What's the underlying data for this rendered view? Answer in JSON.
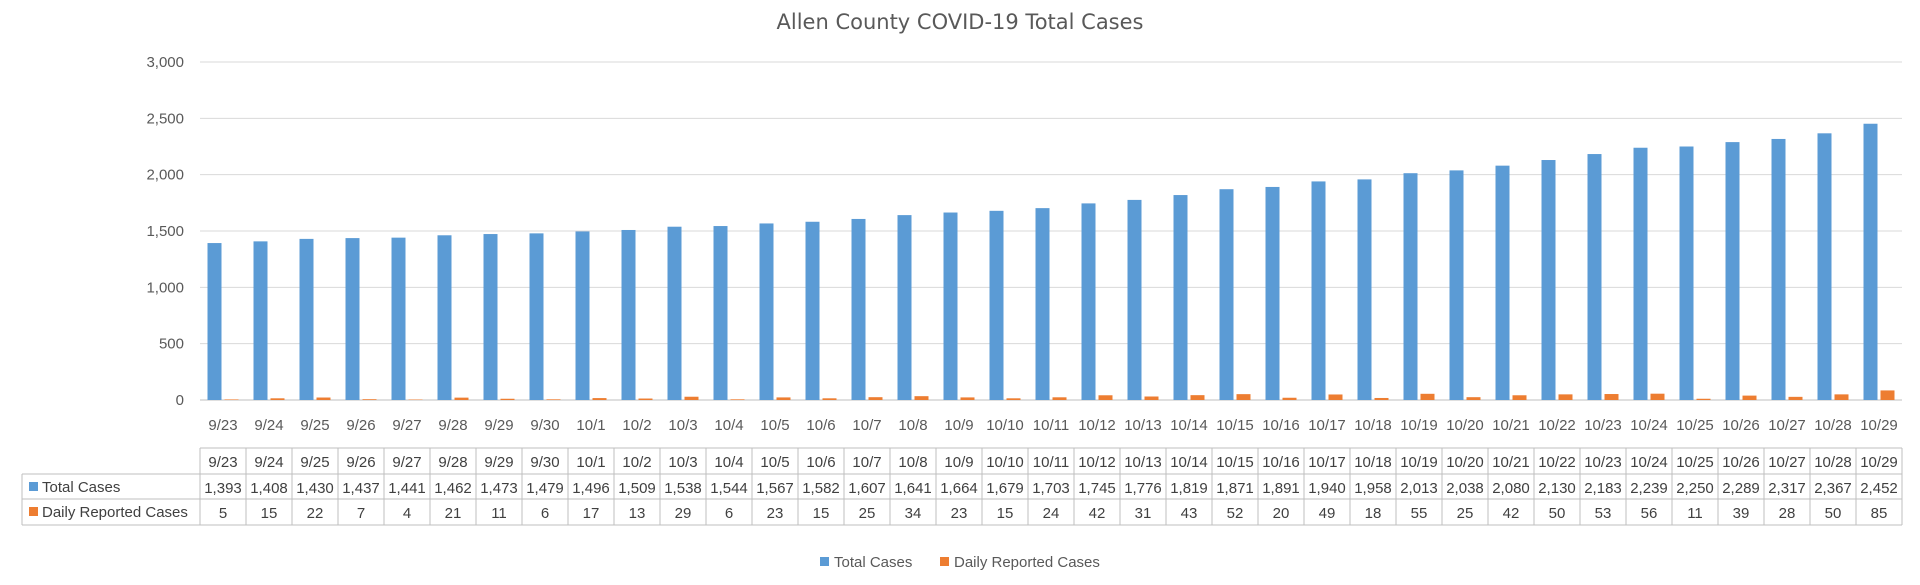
{
  "chart_data": {
    "type": "bar",
    "title": "Allen County COVID-19 Total Cases",
    "categories": [
      "9/23",
      "9/24",
      "9/25",
      "9/26",
      "9/27",
      "9/28",
      "9/29",
      "9/30",
      "10/1",
      "10/2",
      "10/3",
      "10/4",
      "10/5",
      "10/6",
      "10/7",
      "10/8",
      "10/9",
      "10/10",
      "10/11",
      "10/12",
      "10/13",
      "10/14",
      "10/15",
      "10/16",
      "10/17",
      "10/18",
      "10/19",
      "10/20",
      "10/21",
      "10/22",
      "10/23",
      "10/24",
      "10/25",
      "10/26",
      "10/27",
      "10/28",
      "10/29"
    ],
    "series": [
      {
        "name": "Total Cases",
        "color": "#5B9BD5",
        "values": [
          1393,
          1408,
          1430,
          1437,
          1441,
          1462,
          1473,
          1479,
          1496,
          1509,
          1538,
          1544,
          1567,
          1582,
          1607,
          1641,
          1664,
          1679,
          1703,
          1745,
          1776,
          1819,
          1871,
          1891,
          1940,
          1958,
          2013,
          2038,
          2080,
          2130,
          2183,
          2239,
          2250,
          2289,
          2317,
          2367,
          2452
        ],
        "labels": [
          "1,393",
          "1,408",
          "1,430",
          "1,437",
          "1,441",
          "1,462",
          "1,473",
          "1,479",
          "1,496",
          "1,509",
          "1,538",
          "1,544",
          "1,567",
          "1,582",
          "1,607",
          "1,641",
          "1,664",
          "1,679",
          "1,703",
          "1,745",
          "1,776",
          "1,819",
          "1,871",
          "1,891",
          "1,940",
          "1,958",
          "2,013",
          "2,038",
          "2,080",
          "2,130",
          "2,183",
          "2,239",
          "2,250",
          "2,289",
          "2,317",
          "2,367",
          "2,452"
        ]
      },
      {
        "name": "Daily Reported Cases",
        "color": "#ED7D31",
        "values": [
          5,
          15,
          22,
          7,
          4,
          21,
          11,
          6,
          17,
          13,
          29,
          6,
          23,
          15,
          25,
          34,
          23,
          15,
          24,
          42,
          31,
          43,
          52,
          20,
          49,
          18,
          55,
          25,
          42,
          50,
          53,
          56,
          11,
          39,
          28,
          50,
          85
        ],
        "labels": [
          "5",
          "15",
          "22",
          "7",
          "4",
          "21",
          "11",
          "6",
          "17",
          "13",
          "29",
          "6",
          "23",
          "15",
          "25",
          "34",
          "23",
          "15",
          "24",
          "42",
          "31",
          "43",
          "52",
          "20",
          "49",
          "18",
          "55",
          "25",
          "42",
          "50",
          "53",
          "56",
          "11",
          "39",
          "28",
          "50",
          "85"
        ]
      }
    ],
    "ylim": [
      0,
      3000
    ],
    "yticks": [
      0,
      500,
      1000,
      1500,
      2000,
      2500,
      3000
    ],
    "ytick_labels": [
      "0",
      "500",
      "1,000",
      "1,500",
      "2,000",
      "2,500",
      "3,000"
    ],
    "grid": true,
    "legend": "bottom-center",
    "data_table": true
  }
}
